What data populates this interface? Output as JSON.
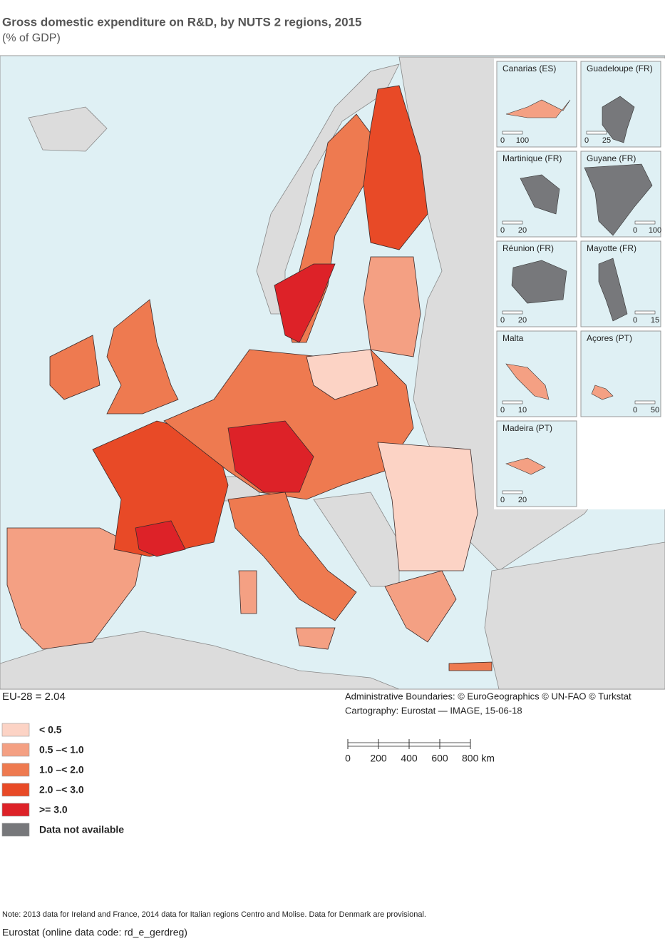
{
  "header": {
    "title": "Gross domestic expenditure on R&D, by NUTS 2 regions, 2015",
    "subtitle": "(% of GDP)"
  },
  "insets": [
    {
      "title": "Canarias (ES)",
      "scale": [
        "0",
        "100"
      ]
    },
    {
      "title": "Guadeloupe (FR)",
      "scale": [
        "0",
        "25"
      ]
    },
    {
      "title": "Martinique (FR)",
      "scale": [
        "0",
        "20"
      ]
    },
    {
      "title": "Guyane (FR)",
      "scale": [
        "0",
        "100"
      ]
    },
    {
      "title": "Réunion (FR)",
      "scale": [
        "0",
        "20"
      ]
    },
    {
      "title": "Mayotte (FR)",
      "scale": [
        "0",
        "15"
      ]
    },
    {
      "title": "Malta",
      "scale": [
        "0",
        "10"
      ]
    },
    {
      "title": "Açores (PT)",
      "scale": [
        "0",
        "50"
      ]
    },
    {
      "title": "Madeira (PT)",
      "scale": [
        "0",
        "20"
      ]
    }
  ],
  "summary": "EU-28 = 2.04",
  "credits": [
    "Administrative Boundaries: © EuroGeographics © UN-FAO © Turkstat",
    "Cartography: Eurostat — IMAGE, 15-06-18"
  ],
  "scale_bar": [
    "0",
    "200",
    "400",
    "600",
    "800 km"
  ],
  "legend": [
    {
      "label": "< 0.5",
      "color": "#fcd3c5"
    },
    {
      "label": "0.5 –< 1.0",
      "color": "#f4a083"
    },
    {
      "label": "1.0 –< 2.0",
      "color": "#ee7a50"
    },
    {
      "label": "2.0 –< 3.0",
      "color": "#e84a27"
    },
    {
      "label": ">= 3.0",
      "color": "#dd2228"
    },
    {
      "label": "Data not available",
      "color": "#77787b"
    }
  ],
  "note": "Note: 2013 data for Ireland and France, 2014 data for Italian regions Centro and Molise. Data for Denmark are provisional.",
  "source": "Eurostat (online data code: rd_e_gerdreg)"
}
